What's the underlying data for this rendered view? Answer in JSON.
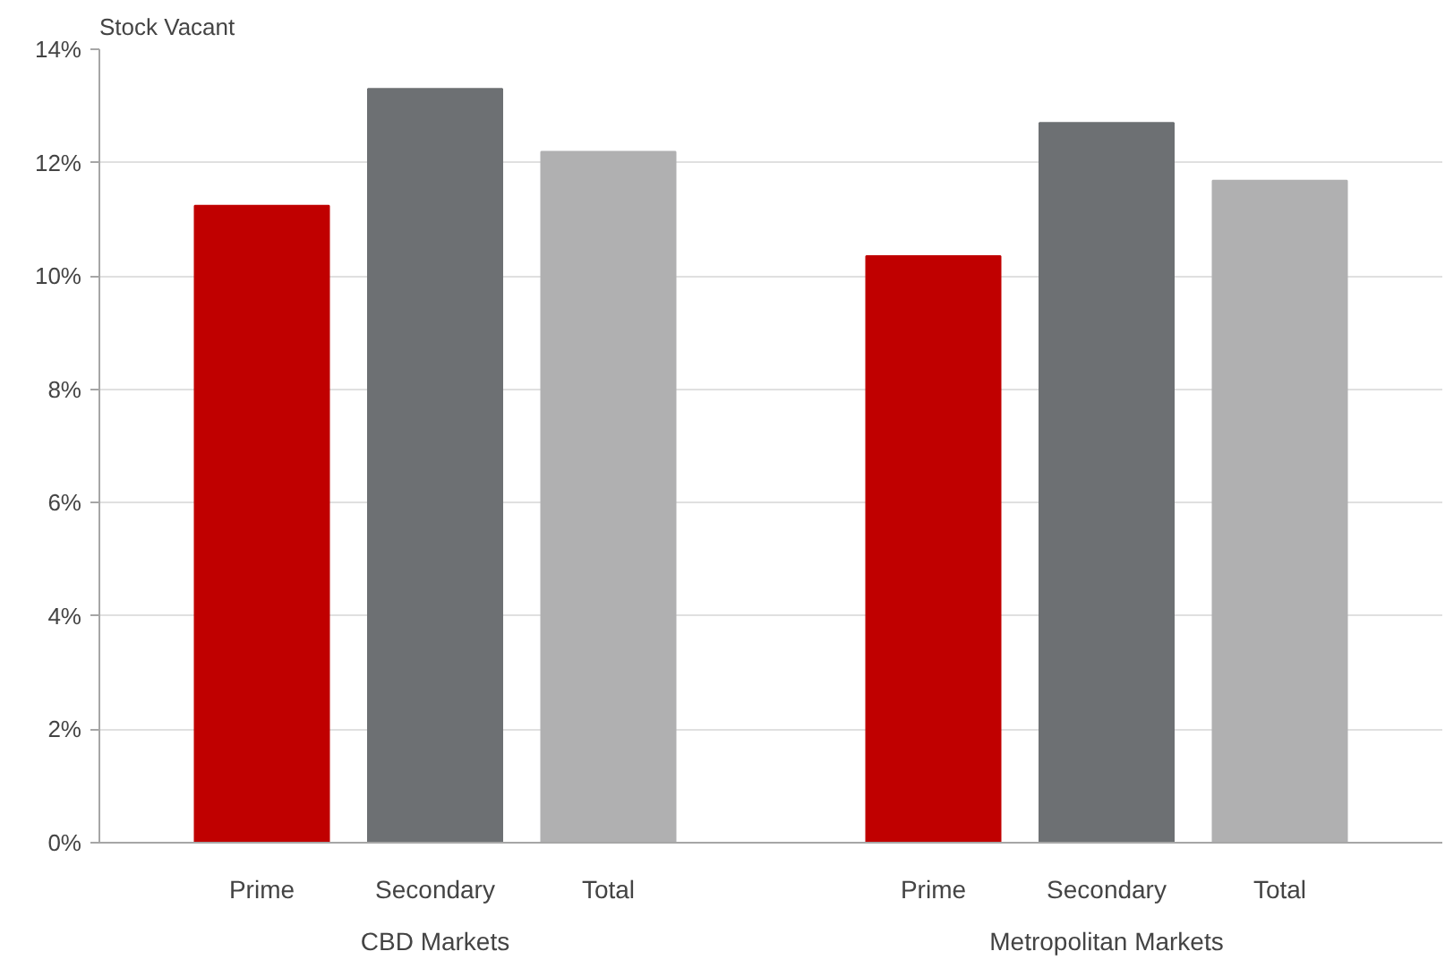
{
  "chart_data": {
    "type": "bar",
    "ylabel": "Stock Vacant",
    "categories": [
      "CBD Markets",
      "Metropolitan Markets"
    ],
    "series": [
      {
        "name": "Prime",
        "color": "#c00000",
        "values": [
          11.24,
          10.35
        ]
      },
      {
        "name": "Secondary",
        "color": "#6d7073",
        "values": [
          13.3,
          12.7
        ]
      },
      {
        "name": "Total",
        "color": "#b0b0b1",
        "values": [
          12.19,
          11.68
        ]
      }
    ],
    "ylim": [
      0,
      14
    ],
    "yticks": [
      {
        "value": 0,
        "label": "0%"
      },
      {
        "value": 2,
        "label": "2%"
      },
      {
        "value": 4,
        "label": "4%"
      },
      {
        "value": 6,
        "label": "6%"
      },
      {
        "value": 8,
        "label": "8%"
      },
      {
        "value": 10,
        "label": "10%"
      },
      {
        "value": 12,
        "label": "12%"
      },
      {
        "value": 14,
        "label": "14%"
      }
    ],
    "grid": "y"
  }
}
